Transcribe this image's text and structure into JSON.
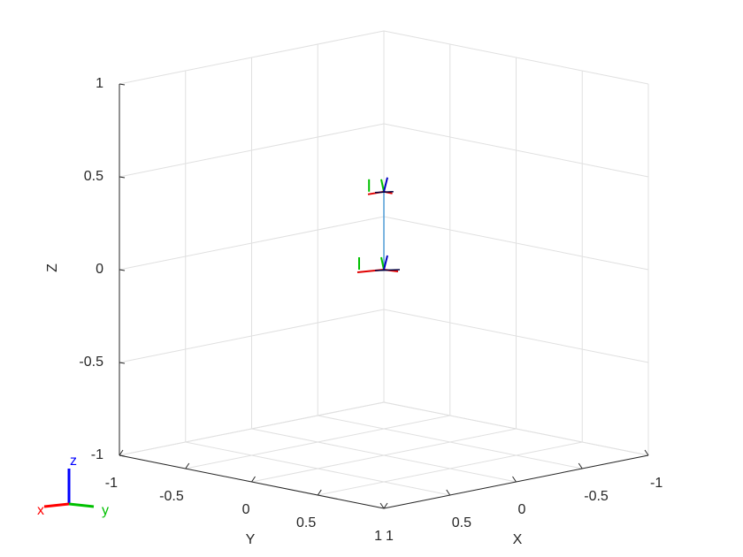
{
  "chart_data": {
    "type": "line3d",
    "xlabel": "X",
    "ylabel": "Y",
    "zlabel": "Z",
    "xlim": [
      -1,
      1
    ],
    "ylim": [
      -1,
      1
    ],
    "zlim": [
      -1,
      1
    ],
    "xticks": [
      -1,
      -0.5,
      0,
      0.5,
      1
    ],
    "yticks": [
      -1,
      -0.5,
      0,
      0.5,
      1
    ],
    "zticks": [
      -1,
      -0.5,
      0,
      0.5,
      1
    ],
    "grid": true,
    "series": [
      {
        "color": "#4d9ad6",
        "x": [
          0,
          0
        ],
        "y": [
          0,
          0
        ],
        "z": [
          0,
          0.42
        ]
      }
    ],
    "orientation_labels": {
      "x": "x",
      "y": "y",
      "z": "z"
    }
  }
}
